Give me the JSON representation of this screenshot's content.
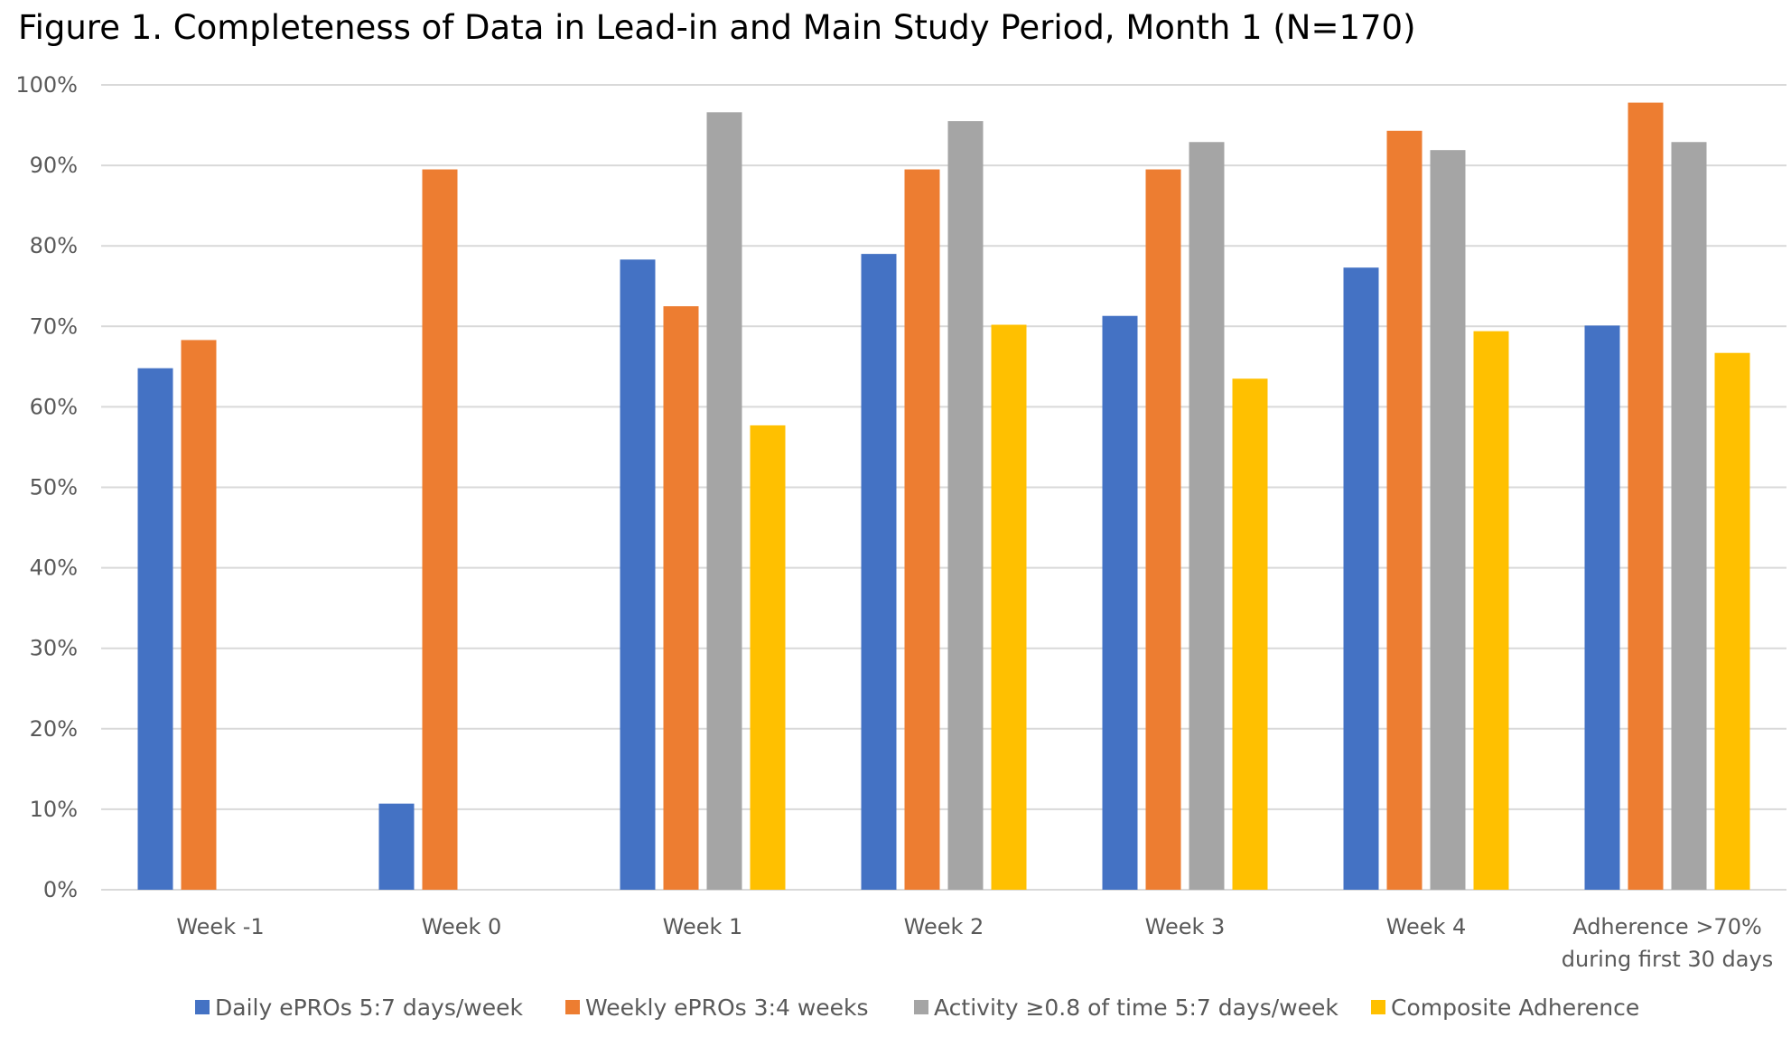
{
  "chart_data": {
    "type": "bar",
    "title": "Figure 1. Completeness of Data in Lead-in and Main Study Period, Month 1 (N=170)",
    "xlabel": "",
    "ylabel": "",
    "ylim": [
      0,
      100
    ],
    "y_ticks": [
      "0%",
      "10%",
      "20%",
      "30%",
      "40%",
      "50%",
      "60%",
      "70%",
      "80%",
      "90%",
      "100%"
    ],
    "grid": true,
    "legend_position": "bottom",
    "categories": [
      [
        "Week -1"
      ],
      [
        "Week 0"
      ],
      [
        "Week 1"
      ],
      [
        "Week 2"
      ],
      [
        "Week 3"
      ],
      [
        "Week 4"
      ],
      [
        "Adherence >70%",
        "during first 30 days"
      ]
    ],
    "series": [
      {
        "name": "Daily ePROs 5:7 days/week",
        "color": "#4472C4",
        "values": [
          64.8,
          10.7,
          78.3,
          79.0,
          71.3,
          77.3,
          70.1
        ]
      },
      {
        "name": "Weekly ePROs 3:4 weeks",
        "color": "#ED7D31",
        "values": [
          68.3,
          89.5,
          72.5,
          89.5,
          89.5,
          94.3,
          97.8
        ]
      },
      {
        "name": "Activity ≥0.8 of time 5:7 days/week",
        "color": "#A5A5A5",
        "values": [
          null,
          null,
          96.6,
          95.5,
          92.9,
          91.9,
          92.9
        ]
      },
      {
        "name": "Composite Adherence",
        "color": "#FFC000",
        "values": [
          null,
          null,
          57.7,
          70.2,
          63.5,
          69.4,
          66.7
        ]
      }
    ]
  }
}
